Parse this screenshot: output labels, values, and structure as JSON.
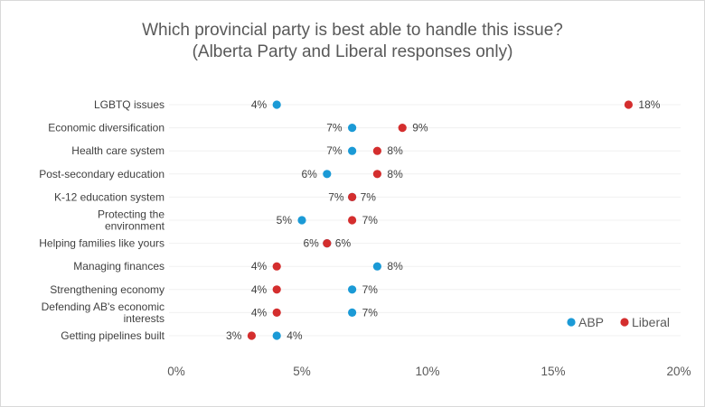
{
  "chart_data": {
    "type": "scatter",
    "title": [
      "Which provincial party is best able to handle this issue?",
      "(Alberta Party and Liberal responses only)"
    ],
    "categories": [
      [
        "LGBTQ issues"
      ],
      [
        "Economic diversification"
      ],
      [
        "Health care system"
      ],
      [
        "Post-secondary education"
      ],
      [
        "K-12 education system"
      ],
      [
        "Protecting the",
        "environment"
      ],
      [
        "Helping families like yours"
      ],
      [
        "Managing finances"
      ],
      [
        "Strengthening economy"
      ],
      [
        "Defending AB's economic",
        "interests"
      ],
      [
        "Getting pipelines built"
      ]
    ],
    "series": [
      {
        "name": "ABP",
        "color": "#1b9ad6",
        "values": [
          4,
          7,
          7,
          6,
          7,
          5,
          6,
          8,
          7,
          7,
          4
        ]
      },
      {
        "name": "Liberal",
        "color": "#d42e2e",
        "values": [
          18,
          9,
          8,
          8,
          7,
          7,
          6,
          4,
          4,
          4,
          3
        ]
      }
    ],
    "xlim": [
      0,
      20
    ],
    "xticks": [
      "0%",
      "5%",
      "10%",
      "15%",
      "20%"
    ],
    "xtick_values": [
      0,
      5,
      10,
      15,
      20
    ],
    "value_suffix": "%",
    "legend": "bottom-right",
    "grid": "horizontal"
  }
}
